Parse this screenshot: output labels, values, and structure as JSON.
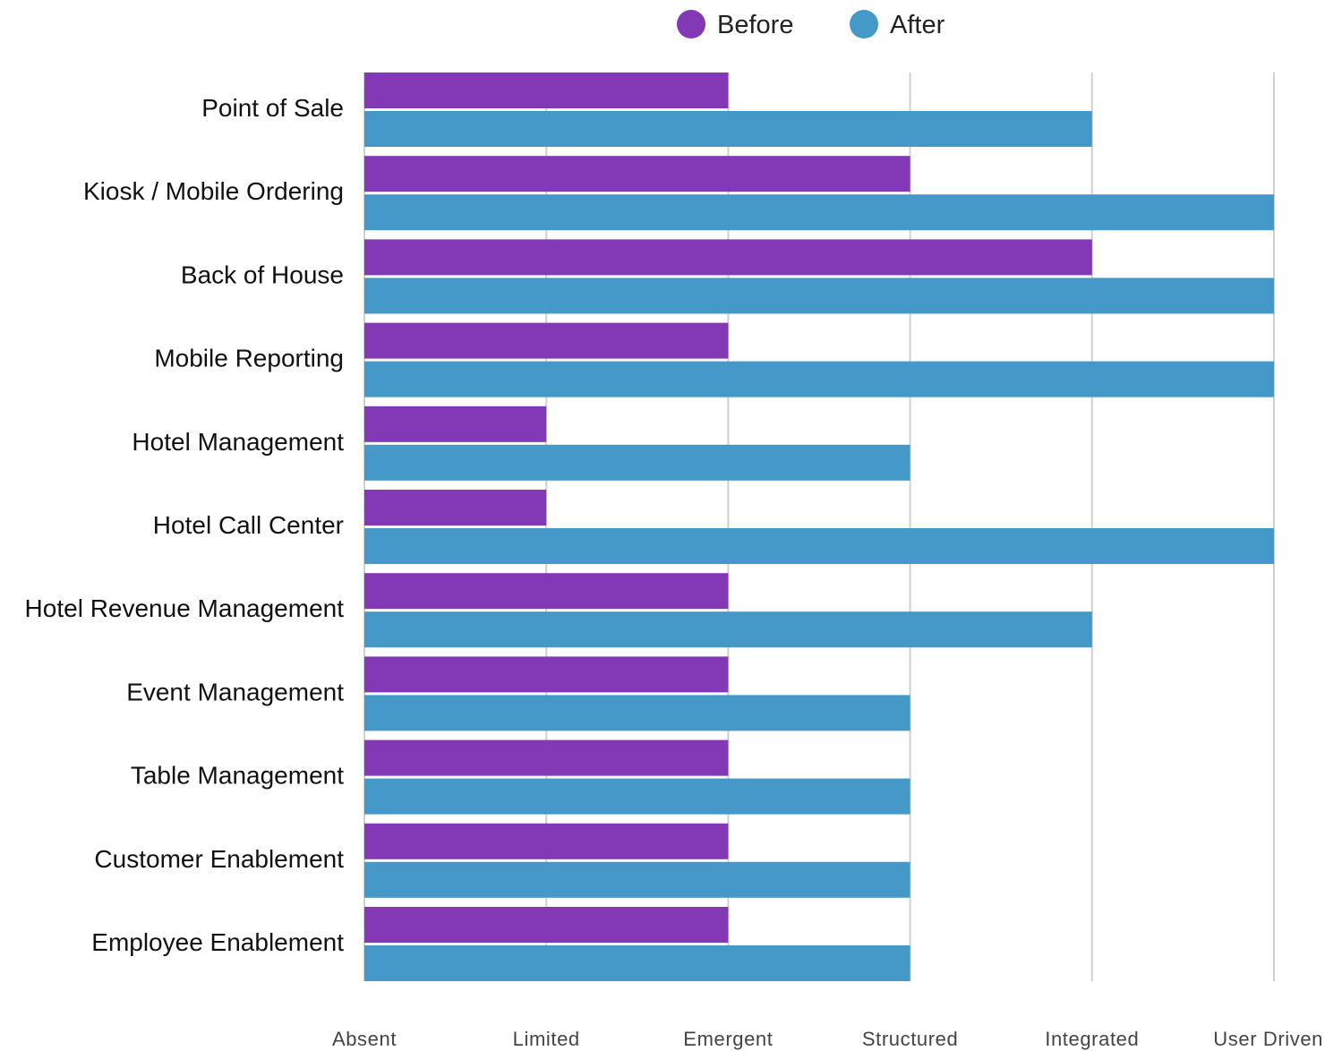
{
  "colors": {
    "before": "#8339b5",
    "after": "#4599c8",
    "grid": "#d0d0d0"
  },
  "chart_data": {
    "type": "bar",
    "orientation": "horizontal",
    "categories": [
      "Point of Sale",
      "Kiosk / Mobile Ordering",
      "Back of House",
      "Mobile Reporting",
      "Hotel Management",
      "Hotel Call Center",
      "Hotel Revenue Management",
      "Event Management",
      "Table Management",
      "Customer Enablement",
      "Employee Enablement"
    ],
    "series": [
      {
        "name": "Before",
        "color": "#8339b5",
        "values": [
          2,
          3,
          4,
          2,
          1,
          1,
          2,
          2,
          2,
          2,
          2
        ]
      },
      {
        "name": "After",
        "color": "#4599c8",
        "values": [
          4,
          5,
          5,
          5,
          3,
          5,
          4,
          3,
          3,
          3,
          3
        ]
      }
    ],
    "x_ticks": [
      "Absent",
      "Limited",
      "Emergent",
      "Structured",
      "Integrated",
      "User Driven"
    ],
    "xlim": [
      0,
      5
    ],
    "grid": true,
    "legend_position": "top-center"
  }
}
